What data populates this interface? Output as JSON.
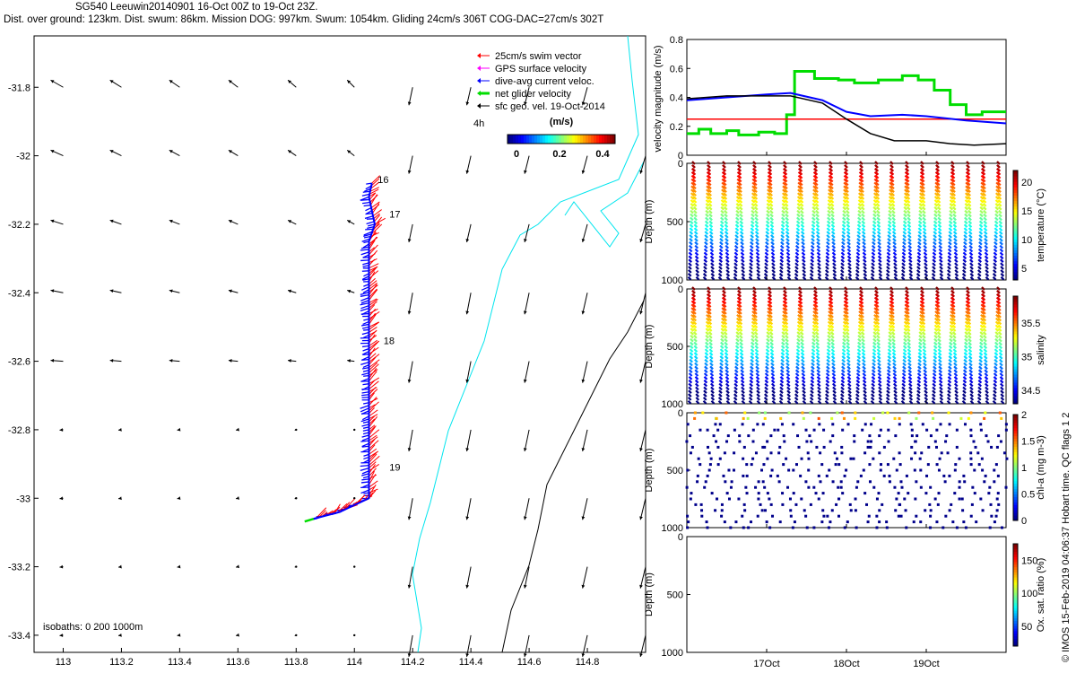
{
  "header": {
    "title": "SG540 Leeuwin20140901 16-Oct 00Z to 19-Oct 23Z.",
    "subtitle": "Dist. over ground: 123km. Dist. swum: 86km. Mission DOG: 997km. Swum: 1054km. Gliding 24cm/s 306T COG-DAC=27cm/s 302T"
  },
  "footer_note": "© IMOS 15-Feb-2019 04:06:37 Hobart time. QC flags 1  2",
  "colors": {
    "swim": "#ff0000",
    "gps": "#ff00ff",
    "dac": "#0000ff",
    "net": "#00dd00",
    "sfc": "#000000",
    "coast": "#00e5ee",
    "isobath": "#000000"
  },
  "chart_data": [
    {
      "type": "map-quiver",
      "xlim": [
        112.9,
        115.0
      ],
      "ylim": [
        -33.45,
        -31.65
      ],
      "x_ticks": [
        "113",
        "113.2",
        "113.4",
        "113.6",
        "113.8",
        "114",
        "114.2",
        "114.4",
        "114.6",
        "114.8"
      ],
      "y_ticks": [
        "-31.8",
        "-32",
        "-32.2",
        "-32.4",
        "-32.6",
        "-32.8",
        "-33",
        "-33.2",
        "-33.4"
      ],
      "legend": [
        "25cm/s swim vector",
        "GPS surface velocity",
        "dive-avg current veloc.",
        "net glider velocity",
        "sfc geo. vel. 19-Oct-2014"
      ],
      "colorbar": {
        "label": "(m/s)",
        "ticks": [
          "0",
          "0.2",
          "0.4"
        ],
        "range": [
          0,
          0.5
        ]
      },
      "annotation": "4h",
      "isobaths_label": "isobaths: 0   200  1000m",
      "day_labels": [
        {
          "text": "16",
          "lon": 114.08,
          "lat": -32.08
        },
        {
          "text": "17",
          "lon": 114.12,
          "lat": -32.18
        },
        {
          "text": "18",
          "lon": 114.1,
          "lat": -32.55
        },
        {
          "text": "19",
          "lon": 114.12,
          "lat": -32.92
        }
      ],
      "glider_track": [
        [
          114.06,
          -32.08
        ],
        [
          114.05,
          -32.12
        ],
        [
          114.07,
          -32.2
        ],
        [
          114.05,
          -32.25
        ],
        [
          114.05,
          -32.5
        ],
        [
          114.05,
          -32.8
        ],
        [
          114.05,
          -33.0
        ],
        [
          113.95,
          -33.04
        ],
        [
          113.86,
          -33.06
        ]
      ]
    },
    {
      "type": "line",
      "ylabel": "velocity magnitude (m/s)",
      "ylim": [
        0,
        0.8
      ],
      "y_ticks": [
        "0",
        "0.2",
        "0.4",
        "0.6",
        "0.8"
      ],
      "xlim": [
        16.0,
        20.0
      ],
      "series": [
        {
          "key": "swim",
          "x": [
            16.0,
            20.0
          ],
          "y": [
            0.25,
            0.25
          ]
        },
        {
          "key": "dac",
          "x": [
            16.0,
            16.5,
            17.0,
            17.3,
            17.7,
            18.0,
            18.3,
            18.7,
            19.0,
            19.5,
            20.0
          ],
          "y": [
            0.38,
            0.4,
            0.42,
            0.43,
            0.38,
            0.3,
            0.27,
            0.28,
            0.27,
            0.24,
            0.22
          ]
        },
        {
          "key": "sfc",
          "x": [
            16.0,
            16.5,
            17.0,
            17.3,
            17.7,
            18.0,
            18.3,
            18.6,
            19.0,
            19.3,
            19.6,
            20.0
          ],
          "y": [
            0.39,
            0.41,
            0.41,
            0.41,
            0.36,
            0.25,
            0.15,
            0.1,
            0.1,
            0.08,
            0.07,
            0.08
          ]
        },
        {
          "key": "net",
          "x": [
            16.0,
            16.15,
            16.15,
            16.3,
            16.3,
            16.5,
            16.5,
            16.65,
            16.65,
            16.9,
            16.9,
            17.1,
            17.1,
            17.25,
            17.25,
            17.35,
            17.35,
            17.6,
            17.6,
            17.9,
            17.9,
            18.1,
            18.1,
            18.4,
            18.4,
            18.7,
            18.7,
            18.9,
            18.9,
            19.1,
            19.1,
            19.3,
            19.3,
            19.5,
            19.5,
            19.7,
            19.7,
            19.9,
            19.9,
            20.0
          ],
          "y": [
            0.15,
            0.15,
            0.18,
            0.18,
            0.15,
            0.15,
            0.17,
            0.17,
            0.14,
            0.14,
            0.16,
            0.16,
            0.15,
            0.15,
            0.28,
            0.28,
            0.58,
            0.58,
            0.53,
            0.53,
            0.52,
            0.52,
            0.5,
            0.5,
            0.52,
            0.52,
            0.55,
            0.55,
            0.52,
            0.52,
            0.45,
            0.45,
            0.35,
            0.35,
            0.28,
            0.28,
            0.3,
            0.3,
            0.3,
            0.3
          ]
        }
      ]
    },
    {
      "type": "scatter",
      "ylabel": "Depth (m)",
      "clabel": "temperature (°C)",
      "ylim": [
        1000,
        0
      ],
      "y_ticks": [
        "0",
        "500",
        "1000"
      ],
      "c_ticks": [
        "5",
        "10",
        "15",
        "20"
      ],
      "crange": [
        3,
        22
      ],
      "profiles": 21
    },
    {
      "type": "scatter",
      "ylabel": "Depth (m)",
      "clabel": "salinity",
      "ylim": [
        1000,
        0
      ],
      "y_ticks": [
        "0",
        "500",
        "1000"
      ],
      "c_ticks": [
        "34.5",
        "35",
        "35.5"
      ],
      "crange": [
        34.3,
        35.9
      ],
      "profiles": 21
    },
    {
      "type": "scatter",
      "ylabel": "Depth (m)",
      "clabel": "chl-a (mg m-3)",
      "ylim": [
        1000,
        0
      ],
      "y_ticks": [
        "0",
        "500",
        "1000"
      ],
      "c_ticks": [
        "0",
        "0.5",
        "1",
        "1.5",
        "2"
      ],
      "crange": [
        0,
        2
      ],
      "profiles": 21
    },
    {
      "type": "scatter",
      "ylabel": "Depth (m)",
      "clabel": "Ox. sat. ratio (%)",
      "ylim": [
        1000,
        0
      ],
      "y_ticks": [
        "0",
        "500",
        "1000"
      ],
      "c_ticks": [
        "50",
        "100",
        "150"
      ],
      "crange": [
        20,
        175
      ],
      "x_ticks": [
        "17Oct",
        "18Oct",
        "19Oct"
      ],
      "profiles": 0
    }
  ]
}
